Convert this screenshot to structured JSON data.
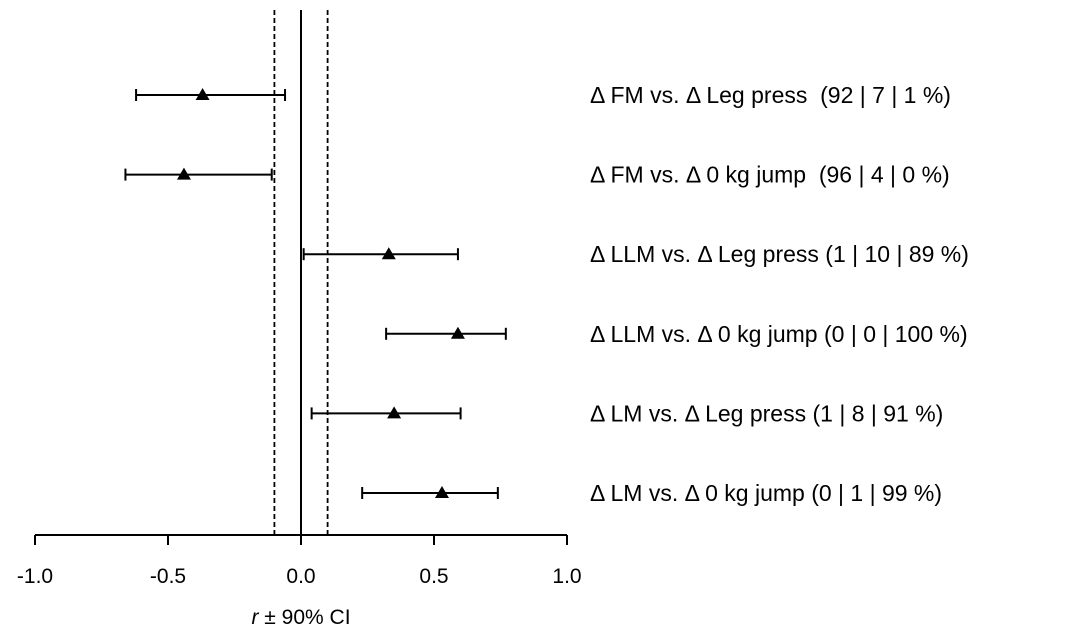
{
  "chart_data": {
    "type": "scatter",
    "xlabel_italic": "r",
    "xlabel_rest": " ± 90% CI",
    "xlim": [
      -1.0,
      1.0
    ],
    "xticks": [
      "-1.0",
      "-0.5",
      "0.0",
      "0.5",
      "1.0"
    ],
    "xtick_values": [
      -1.0,
      -0.5,
      0.0,
      0.5,
      1.0
    ],
    "reference_line": 0.0,
    "threshold_lines": [
      -0.1,
      0.1
    ],
    "marker": "triangle",
    "rows": [
      {
        "label": "Δ FM vs. Δ Leg press  (92 | 7 | 1 %)",
        "r": -0.37,
        "lower": -0.62,
        "upper": -0.06
      },
      {
        "label": "Δ FM vs. Δ 0 kg jump  (96 | 4 | 0 %)",
        "r": -0.44,
        "lower": -0.66,
        "upper": -0.11
      },
      {
        "label": "Δ LLM vs. Δ Leg press (1 | 10 | 89 %)",
        "r": 0.33,
        "lower": 0.01,
        "upper": 0.59
      },
      {
        "label": "Δ LLM vs. Δ 0 kg jump (0 | 0 | 100 %)",
        "r": 0.59,
        "lower": 0.32,
        "upper": 0.77
      },
      {
        "label": "Δ LM vs. Δ Leg press (1 | 8 | 91 %)",
        "r": 0.35,
        "lower": 0.04,
        "upper": 0.6
      },
      {
        "label": "Δ LM vs. Δ 0 kg jump (0 | 1 | 99 %)",
        "r": 0.53,
        "lower": 0.23,
        "upper": 0.74
      }
    ]
  }
}
